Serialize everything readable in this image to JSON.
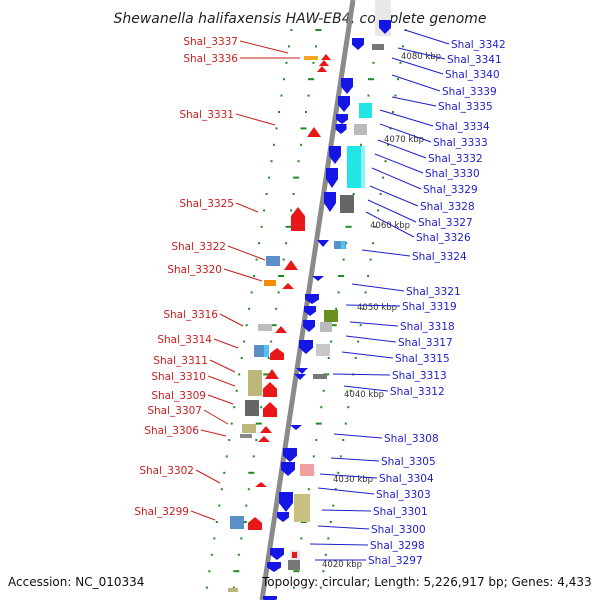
{
  "title": "Shewanella halifaxensis HAW-EB4, complete genome",
  "accession_text": "Accession: NC_010334",
  "topology_text": "Topology: circular; Length: 5,226,917 bp; Genes: 4,433",
  "colors": {
    "reverse_strand": "#e81818",
    "forward_strand": "#1515e6",
    "backbone": "#888888",
    "tick": "#1e8c1e",
    "red_label": "#c81e1e",
    "blue_label": "#1e1ec8"
  },
  "scale_labels": [
    "4080 kbp",
    "4070 kbp",
    "4060 kbp",
    "4050 kbp",
    "4040 kbp",
    "4030 kbp",
    "4020 kbp"
  ],
  "left_genes": [
    "Shal_3337",
    "Shal_3336",
    "Shal_3331",
    "Shal_3325",
    "Shal_3322",
    "Shal_3320",
    "Shal_3316",
    "Shal_3314",
    "Shal_3311",
    "Shal_3310",
    "Shal_3309",
    "Shal_3307",
    "Shal_3306",
    "Shal_3302",
    "Shal_3299"
  ],
  "right_genes": [
    "Shal_3342",
    "Shal_3341",
    "Shal_3340",
    "Shal_3339",
    "Shal_3335",
    "Shal_3334",
    "Shal_3333",
    "Shal_3332",
    "Shal_3330",
    "Shal_3329",
    "Shal_3328",
    "Shal_3327",
    "Shal_3326",
    "Shal_3324",
    "Shal_3321",
    "Shal_3319",
    "Shal_3318",
    "Shal_3317",
    "Shal_3315",
    "Shal_3313",
    "Shal_3312",
    "Shal_3308",
    "Shal_3305",
    "Shal_3304",
    "Shal_3303",
    "Shal_3301",
    "Shal_3300",
    "Shal_3298",
    "Shal_3297"
  ]
}
